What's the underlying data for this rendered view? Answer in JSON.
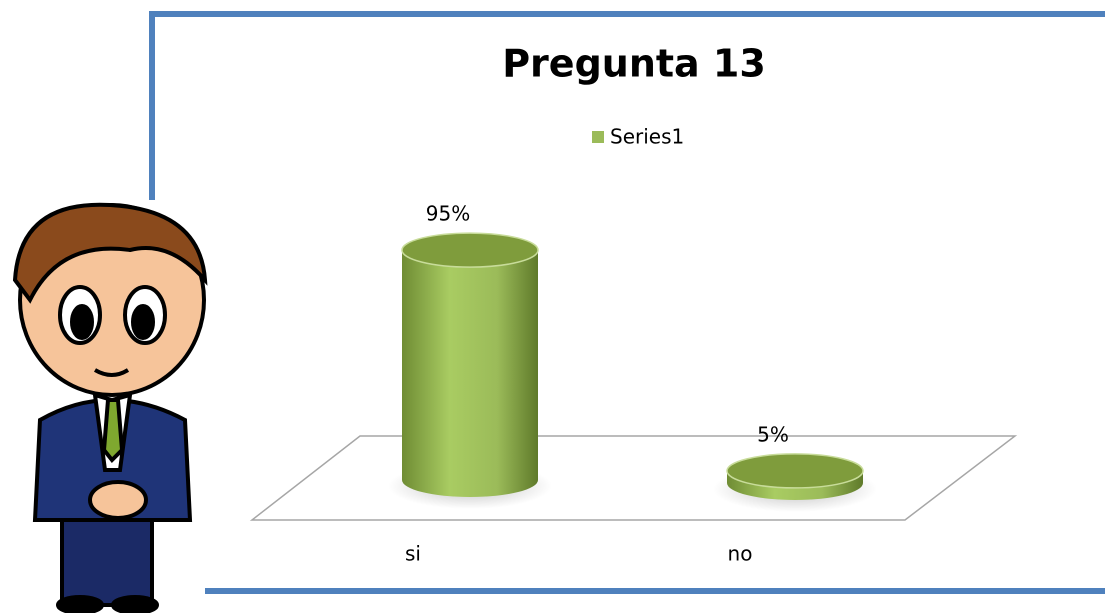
{
  "chart_data": {
    "type": "bar3d",
    "title": "Pregunta 13",
    "categories": [
      "si",
      "no"
    ],
    "series": [
      {
        "name": "Series1",
        "color": "#9bbb59",
        "values": [
          95,
          5
        ],
        "value_labels": [
          "95%",
          "5%"
        ]
      }
    ],
    "legend": "top"
  }
}
